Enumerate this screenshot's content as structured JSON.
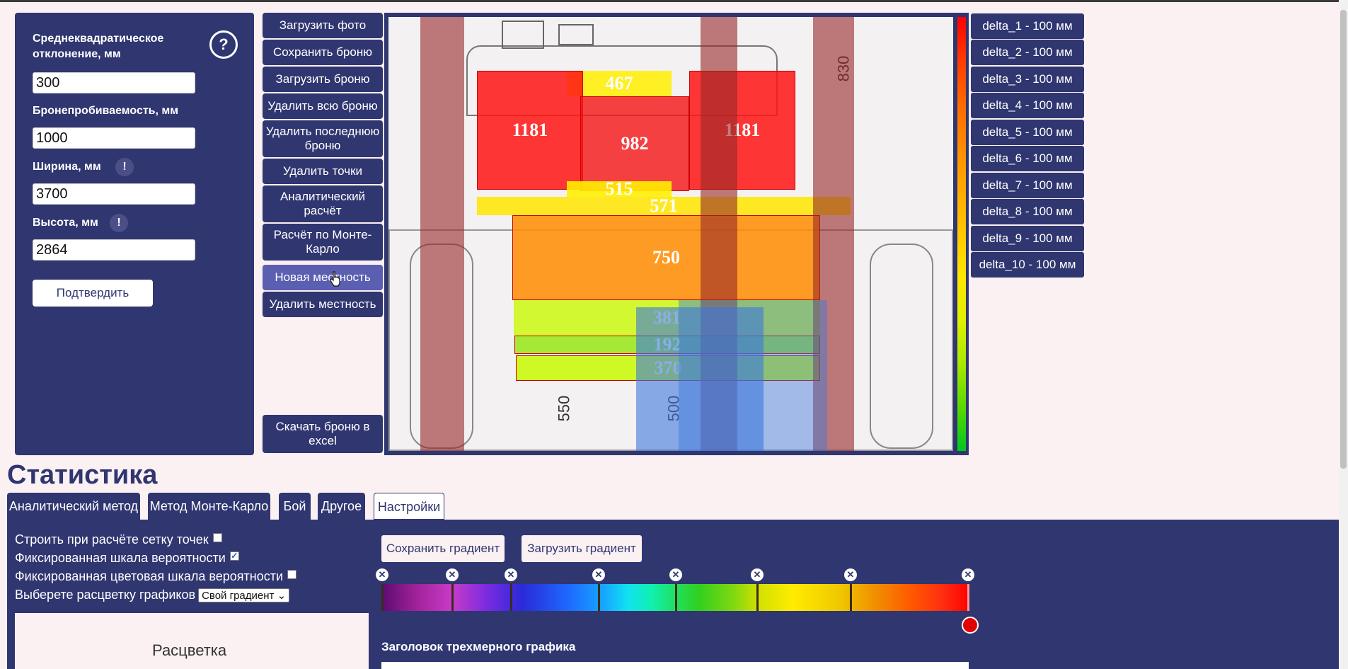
{
  "params": {
    "help_symbol": "?",
    "warn_symbol": "!",
    "sigma_label": "Среднеквадратическое отклонение, мм",
    "sigma_value": "300",
    "penetration_label": "Бронепробиваемость, мм",
    "penetration_value": "1000",
    "width_label": "Ширина, мм",
    "width_value": "3700",
    "height_label": "Высота, мм",
    "height_value": "2864",
    "confirm_label": "Подтвердить"
  },
  "toolbar": {
    "load_photo": "Загрузить фото",
    "save_armor": "Сохранить броню",
    "load_armor": "Загрузить броню",
    "delete_all_armor": "Удалить всю броню",
    "delete_last_armor": "Удалить последнюю броню",
    "delete_points": "Удалить точки",
    "analytic_calc": "Аналитический расчёт",
    "monte_carlo_calc": "Расчёт по Монте-Карло",
    "new_terrain": "Новая местность",
    "delete_terrain": "Удалить местность",
    "download_excel": "Скачать броню в excel"
  },
  "armor_zones": {
    "z467": "467",
    "z1181_left": "1181",
    "z982": "982",
    "z1181_right": "1181",
    "z515": "515",
    "z571": "571",
    "z750": "750",
    "z381": "381",
    "z192": "192",
    "z370": "370"
  },
  "drawing_dims": {
    "d830": "830",
    "d550": "550",
    "d500": "500"
  },
  "deltas": [
    "delta_1 - 100 мм",
    "delta_2 - 100 мм",
    "delta_3 - 100 мм",
    "delta_4 - 100 мм",
    "delta_5 - 100 мм",
    "delta_6 - 100 мм",
    "delta_7 - 100 мм",
    "delta_8 - 100 мм",
    "delta_9 - 100 мм",
    "delta_10 - 100 мм"
  ],
  "statistics": {
    "title": "Статистика",
    "tabs": [
      "Аналитический метод",
      "Метод Монте-Карло",
      "Бой",
      "Другое",
      "Настройки"
    ],
    "selected_tab": "Настройки",
    "options": {
      "grid_points": "Строить при расчёте сетку точек",
      "grid_points_checked": false,
      "fixed_scale": "Фиксированная шкала вероятности",
      "fixed_scale_checked": true,
      "fixed_color_scale": "Фиксированная цветовая шкала вероятности",
      "fixed_color_scale_checked": false,
      "color_scheme": "Выберете расцветку графиков",
      "color_scheme_value": "Свой градиент"
    },
    "coloring_label": "Расцветка",
    "save_gradient": "Сохранить градиент",
    "load_gradient": "Загрузить градиент",
    "graph3d_title_label": "Заголовок трехмерного графика",
    "remove_stop_symbol": "✕"
  },
  "colors": {
    "navy": "#2f3670",
    "page_bg": "#fbf1f3",
    "active_button": "#5b5fb1"
  }
}
